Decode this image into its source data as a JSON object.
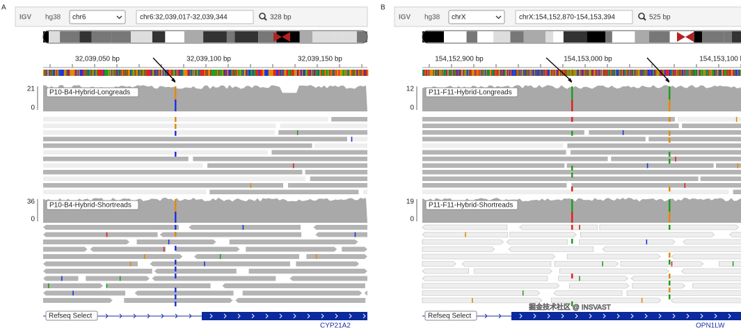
{
  "panels": [
    {
      "label": "A",
      "logo": "IGV",
      "genome": "hg38",
      "chromosome": "chr6",
      "locus": "chr6:32,039,017-32,039,344",
      "width": "328 bp",
      "ruler": [
        "32,039,050 bp",
        "32,039,100 bp",
        "32,039,150 bp"
      ],
      "tracks": [
        {
          "name": "P10-B4-Hybrid-Longreads",
          "max": "21",
          "min": "0"
        },
        {
          "name": "P10-B4-Hybrid-Shortreads",
          "max": "36",
          "min": "0"
        }
      ],
      "annotation": {
        "name": "Refseq Select",
        "gene": "CYP21A2"
      }
    },
    {
      "label": "B",
      "logo": "IGV",
      "genome": "hg38",
      "chromosome": "chrX",
      "locus": "chrX:154,152,870-154,153,394",
      "width": "525 bp",
      "ruler": [
        "154,152,900 bp",
        "154,153,000 bp",
        "154,153,100 bp"
      ],
      "tracks": [
        {
          "name": "P11-F11-Hybrid-Longreads",
          "max": "12",
          "min": "0"
        },
        {
          "name": "P11-F11-Hybrid-Shortreads",
          "max": "19",
          "min": "0"
        }
      ],
      "annotation": {
        "name": "Refseq Select",
        "gene": "OPN1LW"
      }
    }
  ],
  "watermark": "掘金技术社区 @ INSVAST"
}
